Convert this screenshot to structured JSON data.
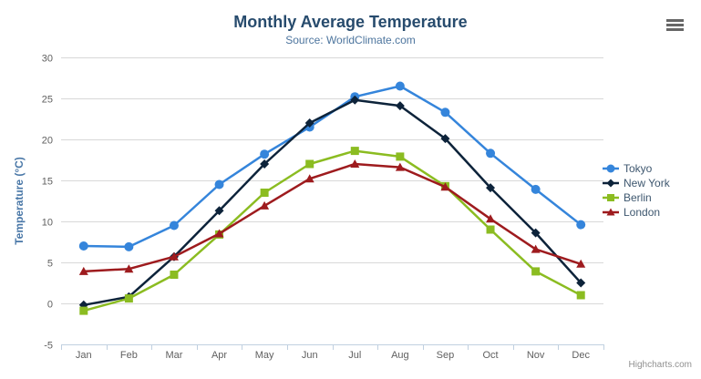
{
  "chart": {
    "icons": {
      "context_menu": "hamburger-icon"
    }
  },
  "chart_data": {
    "type": "line",
    "title": "Monthly Average Temperature",
    "subtitle": "Source: WorldClimate.com",
    "credits": "Highcharts.com",
    "categories": [
      "Jan",
      "Feb",
      "Mar",
      "Apr",
      "May",
      "Jun",
      "Jul",
      "Aug",
      "Sep",
      "Oct",
      "Nov",
      "Dec"
    ],
    "xlabel": "",
    "ylabel": "Temperature (°C)",
    "ylim": [
      -5,
      30
    ],
    "y_tick_interval": 5,
    "grid": true,
    "legend_position": "right",
    "series": [
      {
        "name": "Tokyo",
        "color": "#3585db",
        "marker": "circle",
        "values": [
          7.0,
          6.9,
          9.5,
          14.5,
          18.2,
          21.5,
          25.2,
          26.5,
          23.3,
          18.3,
          13.9,
          9.6
        ]
      },
      {
        "name": "New York",
        "color": "#0d233a",
        "marker": "diamond",
        "values": [
          -0.2,
          0.8,
          5.7,
          11.3,
          17.0,
          22.0,
          24.8,
          24.1,
          20.1,
          14.1,
          8.6,
          2.5
        ]
      },
      {
        "name": "Berlin",
        "color": "#8bbc21",
        "marker": "square",
        "values": [
          -0.9,
          0.6,
          3.5,
          8.4,
          13.5,
          17.0,
          18.6,
          17.9,
          14.3,
          9.0,
          3.9,
          1.0
        ]
      },
      {
        "name": "London",
        "color": "#9e1b1e",
        "marker": "triangle",
        "values": [
          3.9,
          4.2,
          5.7,
          8.5,
          11.9,
          15.2,
          17.0,
          16.6,
          14.2,
          10.3,
          6.6,
          4.8
        ]
      }
    ],
    "colors": {
      "grid_line": "#d8d8d8",
      "axis_line": "#c0d0e0",
      "axis_label": "#606060",
      "title": "#274b6d",
      "subtitle": "#4d759e",
      "y_axis_title": "#4977a7",
      "legend_text": "#3E576F",
      "credits": "#909090"
    }
  }
}
